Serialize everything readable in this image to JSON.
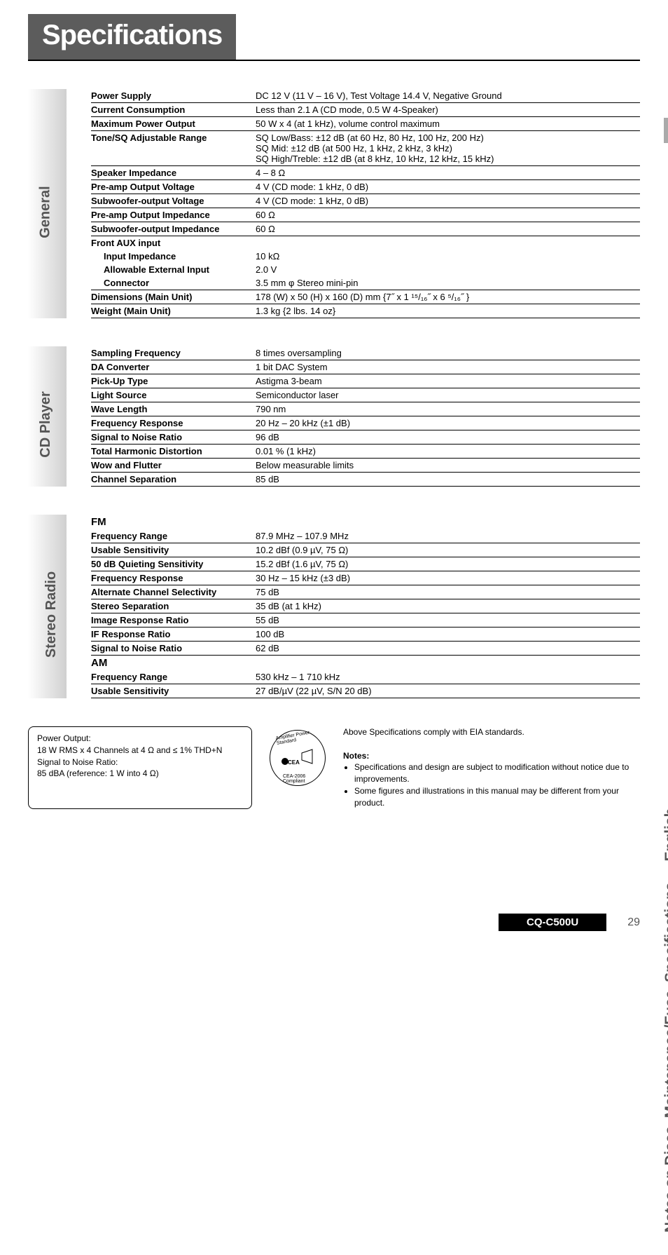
{
  "page": {
    "title": "Specifications",
    "model": "CQ-C500U",
    "page_number": "29",
    "side_label_main": "Notes on Discs, Maintenance/Fuse, Specifications",
    "side_label_lang": "English"
  },
  "sections": {
    "general": {
      "label": "General",
      "rows": [
        {
          "k": "Power Supply",
          "v": "DC 12 V (11 V – 16 V), Test Voltage 14.4 V, Negative Ground"
        },
        {
          "k": "Current Consumption",
          "v": "Less than 2.1 A (CD mode, 0.5 W 4-Speaker)"
        },
        {
          "k": "Maximum Power Output",
          "v": "50 W x 4 (at 1 kHz), volume control maximum"
        },
        {
          "k": "Tone/SQ Adjustable Range",
          "v": "SQ Low/Bass: ±12 dB (at 60 Hz, 80 Hz, 100 Hz, 200 Hz)\nSQ Mid: ±12 dB (at 500 Hz, 1 kHz, 2 kHz, 3 kHz)\nSQ High/Treble: ±12 dB (at 8 kHz, 10 kHz, 12 kHz, 15 kHz)"
        },
        {
          "k": "Speaker Impedance",
          "v": "4 – 8 Ω"
        },
        {
          "k": "Pre-amp Output Voltage",
          "v": "4 V (CD mode: 1 kHz, 0 dB)"
        },
        {
          "k": "Subwoofer-output Voltage",
          "v": "4 V (CD mode: 1 kHz, 0 dB)"
        },
        {
          "k": "Pre-amp Output Impedance",
          "v": "60 Ω"
        },
        {
          "k": "Subwoofer-output Impedance",
          "v": "60 Ω"
        }
      ],
      "aux_header": "Front AUX input",
      "aux_rows": [
        {
          "k": "Input Impedance",
          "v": "10 kΩ"
        },
        {
          "k": "Allowable External Input",
          "v": "2.0 V"
        },
        {
          "k": "Connector",
          "v": "3.5 mm φ Stereo mini-pin"
        }
      ],
      "tail_rows": [
        {
          "k": "Dimensions (Main Unit)",
          "v": "178 (W) x 50 (H) x 160 (D) mm {7˝ x 1 ¹⁵/₁₆˝ x 6 ⁵/₁₆˝ }"
        },
        {
          "k": "Weight (Main Unit)",
          "v": "1.3 kg {2 lbs. 14 oz}"
        }
      ]
    },
    "cd": {
      "label": "CD Player",
      "rows": [
        {
          "k": "Sampling Frequency",
          "v": "8 times oversampling"
        },
        {
          "k": "DA Converter",
          "v": "1 bit DAC System"
        },
        {
          "k": "Pick-Up Type",
          "v": "Astigma 3-beam"
        },
        {
          "k": "Light Source",
          "v": "Semiconductor laser"
        },
        {
          "k": "Wave Length",
          "v": "790 nm"
        },
        {
          "k": "Frequency Response",
          "v": "20 Hz – 20 kHz (±1 dB)"
        },
        {
          "k": "Signal to Noise Ratio",
          "v": "96 dB"
        },
        {
          "k": "Total Harmonic Distortion",
          "v": "0.01 % (1 kHz)"
        },
        {
          "k": "Wow and Flutter",
          "v": "Below measurable limits"
        },
        {
          "k": "Channel Separation",
          "v": "85 dB"
        }
      ]
    },
    "radio": {
      "label": "Stereo Radio",
      "fm_header": "FM",
      "fm_rows": [
        {
          "k": "Frequency Range",
          "v": "87.9 MHz – 107.9 MHz"
        },
        {
          "k": "Usable Sensitivity",
          "v": "10.2 dBf (0.9 µV, 75 Ω)"
        },
        {
          "k": "50 dB Quieting Sensitivity",
          "v": "15.2 dBf (1.6 µV, 75 Ω)"
        },
        {
          "k": "Frequency Response",
          "v": "30 Hz – 15 kHz (±3 dB)"
        },
        {
          "k": "Alternate Channel Selectivity",
          "v": "75 dB"
        },
        {
          "k": "Stereo Separation",
          "v": "35 dB (at 1 kHz)"
        },
        {
          "k": "Image Response Ratio",
          "v": "55 dB"
        },
        {
          "k": "IF Response Ratio",
          "v": "100 dB"
        },
        {
          "k": "Signal to Noise Ratio",
          "v": "62 dB"
        }
      ],
      "am_header": "AM",
      "am_rows": [
        {
          "k": "Frequency Range",
          "v": "530 kHz – 1 710 kHz"
        },
        {
          "k": "Usable Sensitivity",
          "v": "27 dB/µV (22 µV, S/N 20 dB)"
        }
      ]
    }
  },
  "footer": {
    "power_output_label": "Power Output:",
    "power_output_val": "18 W RMS x 4 Channels at 4 Ω and ≤ 1% THD+N",
    "s2n_label": "Signal to Noise Ratio:",
    "s2n_val": "85 dBA (reference: 1 W into 4 Ω)",
    "cea_top": "Amplifier Power Standard",
    "cea_mid": "CEA",
    "cea_bottom": "CEA-2006 Compliant",
    "eia": "Above Specifications comply with EIA standards.",
    "notes_head": "Notes:",
    "note1": "Specifications and design are subject to modification without notice due to improvements.",
    "note2": "Some figures and illustrations in this manual may be different from your product."
  }
}
